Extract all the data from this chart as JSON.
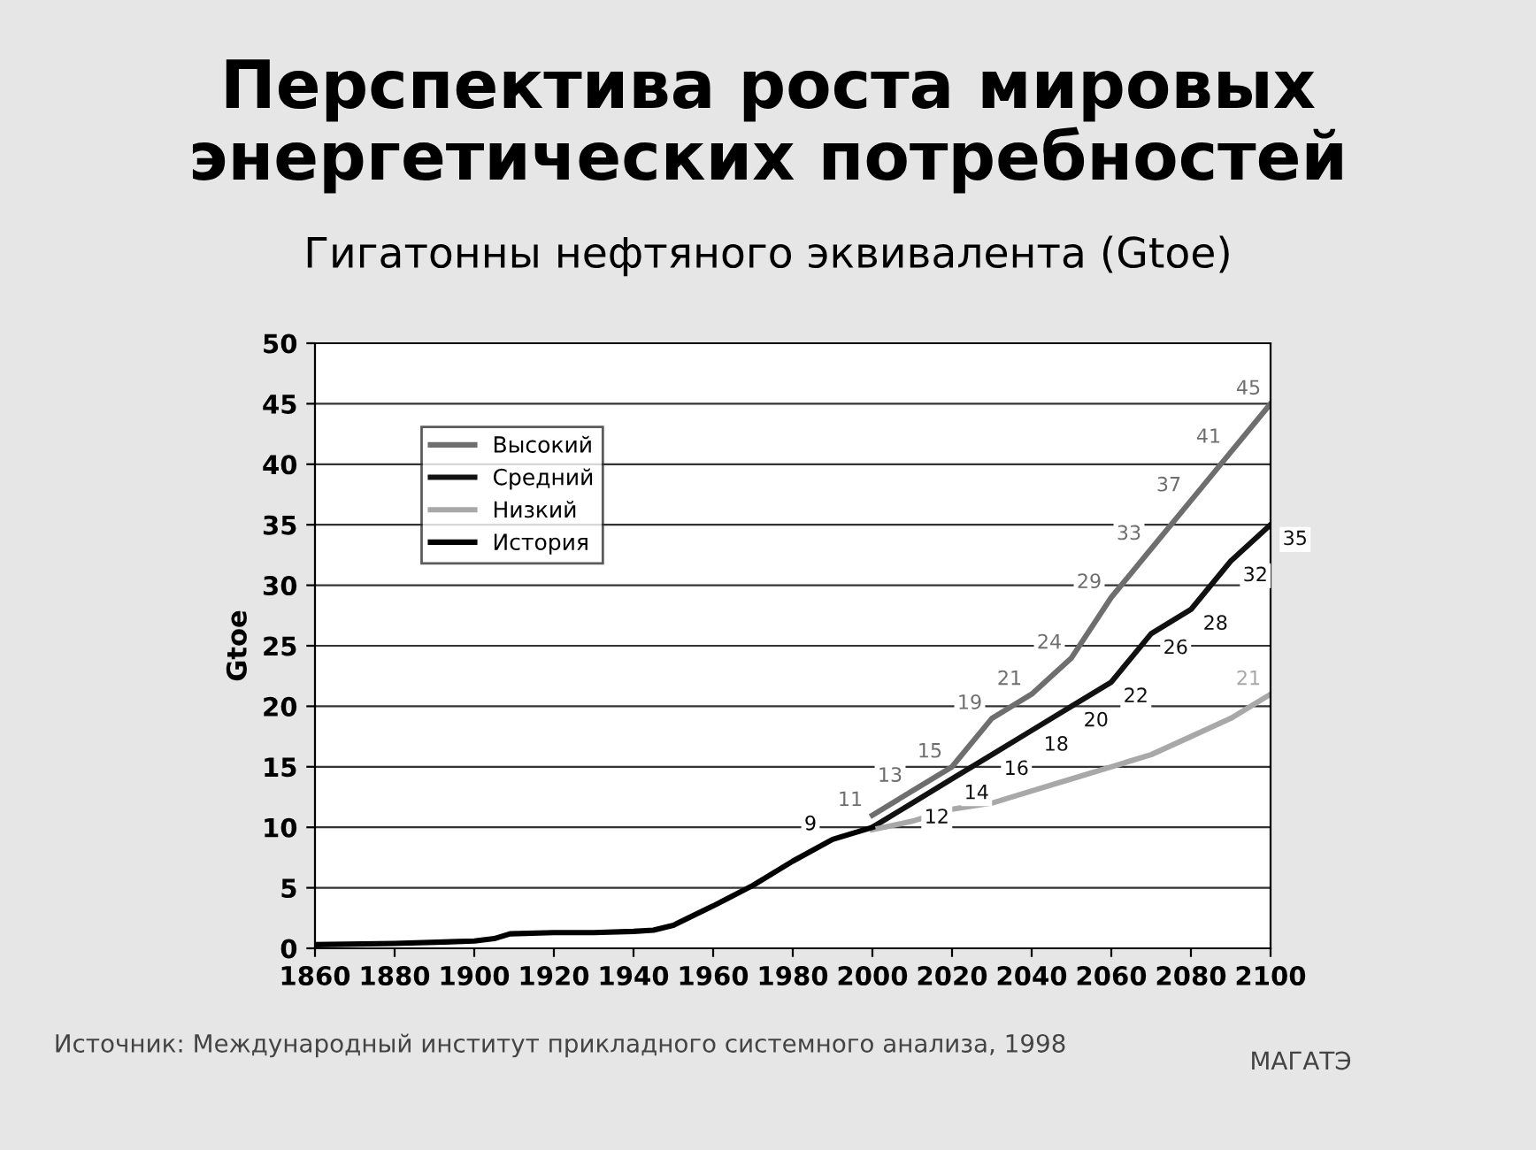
{
  "chart_data": {
    "type": "line",
    "title": "Перспектива роста мировых\nэнергетических потребностей",
    "subtitle": "Гигатонны нефтяного эквивалента (Gtoe)",
    "ylabel": "Gtoe",
    "series": [
      {
        "name": "Высокий",
        "color": "#6e6e6e",
        "x": [
          2000,
          2010,
          2020,
          2030,
          2040,
          2050,
          2060,
          2070,
          2080,
          2090,
          2100
        ],
        "values": [
          11,
          13,
          15,
          19,
          21,
          24,
          29,
          33,
          37,
          41,
          45
        ],
        "value_labels": [
          "11",
          "13",
          "15",
          "19",
          "21",
          "24",
          "29",
          "33",
          "37",
          "41",
          "45"
        ]
      },
      {
        "name": "Средний",
        "color": "#111111",
        "x": [
          2000,
          2010,
          2020,
          2030,
          2040,
          2050,
          2060,
          2070,
          2080,
          2090,
          2100
        ],
        "values": [
          10,
          12,
          14,
          16,
          18,
          20,
          22,
          26,
          28,
          32,
          35
        ],
        "value_labels": [
          null,
          "12",
          "14",
          "16",
          "18",
          "20",
          "22",
          "26",
          "28",
          "32",
          "35"
        ]
      },
      {
        "name": "Низкий",
        "color": "#a8a8a8",
        "x": [
          2000,
          2010,
          2020,
          2030,
          2040,
          2050,
          2060,
          2070,
          2080,
          2090,
          2100
        ],
        "values": [
          9.8,
          10.5,
          11.5,
          12,
          13,
          14,
          15,
          16,
          17.5,
          19,
          21
        ],
        "value_labels": [
          null,
          null,
          null,
          null,
          null,
          null,
          null,
          null,
          null,
          null,
          "21"
        ]
      },
      {
        "name": "История",
        "color": "#000000",
        "x": [
          1860,
          1880,
          1900,
          1905,
          1909,
          1920,
          1930,
          1940,
          1945,
          1950,
          1960,
          1970,
          1980,
          1990,
          2000
        ],
        "values": [
          0.3,
          0.4,
          0.6,
          0.8,
          1.2,
          1.3,
          1.3,
          1.4,
          1.5,
          1.9,
          3.5,
          5.2,
          7.2,
          9,
          10
        ],
        "value_labels": [
          null,
          null,
          null,
          null,
          null,
          null,
          null,
          null,
          null,
          null,
          null,
          null,
          null,
          "9",
          null
        ]
      }
    ],
    "xlim": [
      1860,
      2100
    ],
    "xticks": [
      1860,
      1880,
      1900,
      1920,
      1940,
      1960,
      1980,
      2000,
      2020,
      2040,
      2060,
      2080,
      2100
    ],
    "ylim": [
      0,
      50
    ],
    "yticks": [
      0,
      5,
      10,
      15,
      20,
      25,
      30,
      35,
      40,
      45,
      50
    ],
    "grid": "y",
    "legend": "top left",
    "annotations": [
      "Источник: Международный институт прикладного системного анализа, 1998",
      "МАГАТЭ"
    ]
  }
}
